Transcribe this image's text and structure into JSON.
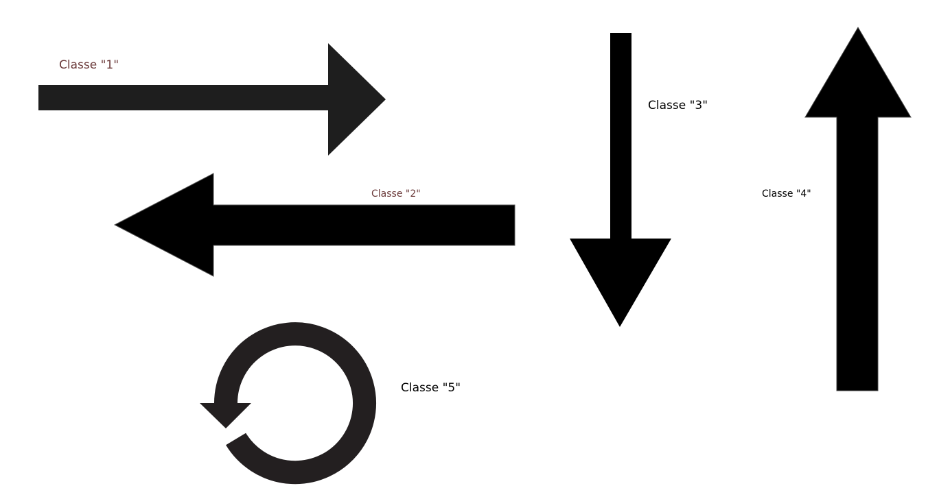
{
  "colors": {
    "background": "#ffffff",
    "arrow_dark": "#1e1e1e",
    "arrow_black": "#000000",
    "arrow_circular": "#231f20",
    "label_dark_red": "#6b3a3a",
    "label_black": "#000000"
  },
  "labels": {
    "class_1": "Classe \"1\"",
    "class_2": "Classe \"2\"",
    "class_3": "Classe \"3\"",
    "class_4": "Classe \"4\"",
    "class_5": "Classe \"5\""
  },
  "arrows": [
    {
      "class": "1",
      "direction": "right",
      "icon": "arrow-right-icon"
    },
    {
      "class": "2",
      "direction": "left",
      "icon": "arrow-left-icon"
    },
    {
      "class": "3",
      "direction": "down",
      "icon": "arrow-down-icon"
    },
    {
      "class": "4",
      "direction": "up",
      "icon": "arrow-up-icon"
    },
    {
      "class": "5",
      "direction": "counterclockwise",
      "icon": "arrow-circular-icon"
    }
  ]
}
